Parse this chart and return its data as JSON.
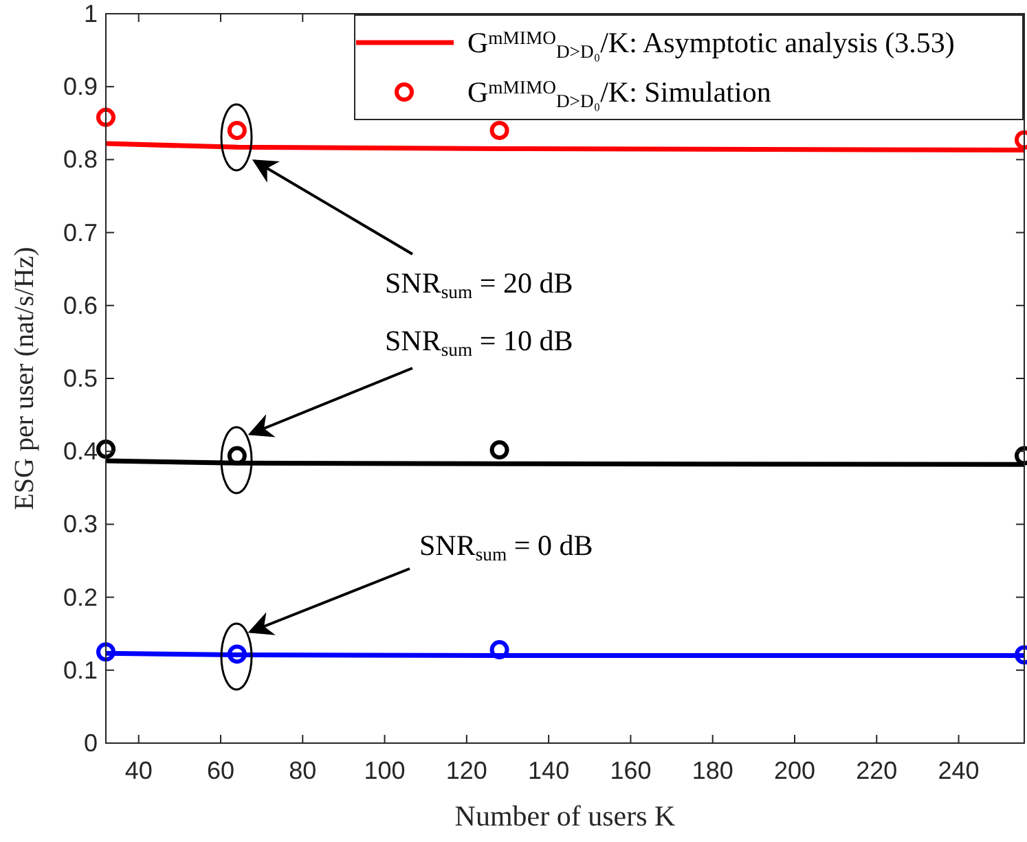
{
  "chart_data": {
    "type": "line",
    "xlabel": "Number of users K",
    "ylabel": "ESG per user (nat/s/Hz)",
    "xlim": [
      32,
      256
    ],
    "xticks": [
      40,
      60,
      80,
      100,
      120,
      140,
      160,
      180,
      200,
      220,
      240
    ],
    "ylim": [
      0,
      1
    ],
    "yticks": [
      0,
      0.1,
      0.2,
      0.3,
      0.4,
      0.5,
      0.6,
      0.7,
      0.8,
      0.9,
      1
    ],
    "x": [
      32,
      64,
      128,
      256
    ],
    "grid": false,
    "legend": "top right",
    "series": [
      {
        "name": "G$^{mMIMO}$$_{D>D₀}$/K: Asymptotic analysis (3.53)",
        "marker": "none",
        "color": "#ff0000",
        "values": [
          0.822,
          0.817,
          0.815,
          0.813
        ]
      },
      {
        "name": "G$^{mMIMO}$$_{D>D₀}$/K: Simulation",
        "type": "scatter",
        "marker": "circle",
        "color": "#ff0000",
        "values": [
          0.858,
          0.84,
          0.84,
          0.827
        ]
      },
      {
        "marker": "none",
        "color": "#000000",
        "values": [
          0.387,
          0.384,
          0.383,
          0.382
        ]
      },
      {
        "type": "scatter",
        "marker": "circle",
        "color": "#000000",
        "values": [
          0.403,
          0.394,
          0.402,
          0.394
        ]
      },
      {
        "marker": "none",
        "color": "#0000ff",
        "values": [
          0.123,
          0.121,
          0.12,
          0.12
        ]
      },
      {
        "type": "scatter",
        "marker": "circle",
        "color": "#0000ff",
        "values": [
          0.125,
          0.122,
          0.128,
          0.121
        ]
      }
    ],
    "annotations": [
      "SNR$_{sum}$ = 20 dB",
      "SNR$_{sum}$ = 10 dB",
      "SNR$_{sum}$ = 0 dB"
    ]
  }
}
